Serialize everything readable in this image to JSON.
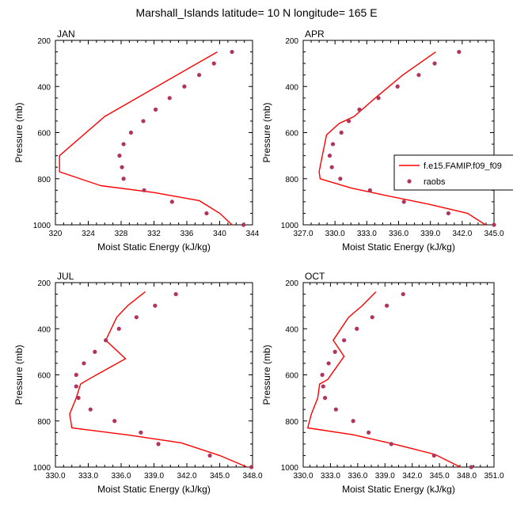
{
  "title": "Marshall_Islands  latitude= 10 N longitude= 165 E",
  "colors": {
    "model": "#ff0000",
    "obs": "#b0345c",
    "axis": "#000000"
  },
  "legend": {
    "entries": [
      "f.e15.FAMIP.f09_f09",
      "raobs"
    ],
    "location": "APR panel, right side"
  },
  "chart_data": [
    {
      "type": "line",
      "panel": "JAN",
      "xlabel": "Moist Static Energy (kJ/kg)",
      "ylabel": "Pressure (mb)",
      "xlim": [
        320,
        344
      ],
      "xticks": [
        320,
        324,
        328,
        332,
        336,
        340,
        344
      ],
      "xtick_labels": [
        "320",
        "324",
        "328",
        "332",
        "336",
        "340",
        "344"
      ],
      "ylim": [
        200,
        1000
      ],
      "yticks": [
        200,
        400,
        600,
        800,
        1000
      ],
      "ytick_labels": [
        "200",
        "400",
        "600",
        "800",
        "1000"
      ],
      "series": [
        {
          "name": "f.e15.FAMIP.f09_f09",
          "style": "line",
          "x": [
            339.7,
            326.0,
            320.5,
            320.5,
            325.5,
            332.0,
            337.5,
            340.0,
            341.5
          ],
          "y": [
            250,
            530,
            700,
            770,
            830,
            860,
            895,
            950,
            1000
          ]
        },
        {
          "name": "raobs",
          "style": "marker",
          "x": [
            341.5,
            339.3,
            337.5,
            335.7,
            333.9,
            332.2,
            330.7,
            329.2,
            328.3,
            327.8,
            328.1,
            328.3,
            330.8,
            334.2,
            338.4,
            342.9
          ],
          "y": [
            250,
            300,
            350,
            400,
            450,
            500,
            550,
            600,
            650,
            700,
            750,
            800,
            850,
            900,
            950,
            1000
          ]
        }
      ]
    },
    {
      "type": "line",
      "panel": "APR",
      "xlabel": "Moist Static Energy (kJ/kg)",
      "ylabel": "Pressure (mb)",
      "xlim": [
        327,
        345
      ],
      "xticks": [
        327,
        330,
        333,
        336,
        339,
        342,
        345
      ],
      "xtick_labels": [
        "327.0",
        "330.0",
        "333.0",
        "336.0",
        "339.0",
        "342.0",
        "345.0"
      ],
      "ylim": [
        200,
        1000
      ],
      "yticks": [
        200,
        400,
        600,
        800,
        1000
      ],
      "ytick_labels": [
        "200",
        "400",
        "600",
        "800",
        "1000"
      ],
      "series": [
        {
          "name": "f.e15.FAMIP.f09_f09",
          "style": "line",
          "x": [
            339.5,
            336.4,
            333.8,
            331.8,
            330.4,
            329.2,
            328.8,
            328.5,
            328.6,
            331.5,
            334.5,
            338.8,
            342.5,
            344.2
          ],
          "y": [
            250,
            350,
            450,
            530,
            560,
            610,
            700,
            770,
            800,
            840,
            870,
            910,
            950,
            1000
          ]
        },
        {
          "name": "raobs",
          "style": "marker",
          "x": [
            341.7,
            339.4,
            337.9,
            335.9,
            334.1,
            332.3,
            331.3,
            330.6,
            329.8,
            329.5,
            329.7,
            330.5,
            333.3,
            336.5,
            340.7,
            345.0
          ],
          "y": [
            250,
            300,
            350,
            400,
            450,
            500,
            550,
            600,
            650,
            700,
            750,
            800,
            850,
            900,
            950,
            1000
          ]
        }
      ]
    },
    {
      "type": "line",
      "panel": "JUL",
      "xlabel": "Moist Static Energy (kJ/kg)",
      "ylabel": "Pressure (mb)",
      "xlim": [
        330,
        348
      ],
      "xticks": [
        330,
        333,
        336,
        339,
        342,
        345,
        348
      ],
      "xtick_labels": [
        "330.0",
        "333.0",
        "336.0",
        "339.0",
        "342.0",
        "345.0",
        "348.0"
      ],
      "ylim": [
        200,
        1000
      ],
      "yticks": [
        200,
        400,
        600,
        800,
        1000
      ],
      "ytick_labels": [
        "200",
        "400",
        "600",
        "800",
        "1000"
      ],
      "series": [
        {
          "name": "f.e15.FAMIP.f09_f09",
          "style": "line",
          "x": [
            338.2,
            336.6,
            335.6,
            334.6,
            336.4,
            333.0,
            332.3,
            331.9,
            331.3,
            331.5,
            336.5,
            341.5,
            345.0,
            347.5
          ],
          "y": [
            240,
            300,
            350,
            450,
            530,
            620,
            640,
            700,
            770,
            830,
            860,
            895,
            950,
            1000
          ]
        },
        {
          "name": "raobs",
          "style": "marker",
          "x": [
            341.0,
            339.1,
            337.4,
            335.8,
            334.6,
            333.6,
            332.6,
            331.9,
            331.9,
            332.1,
            333.2,
            335.4,
            337.8,
            339.4,
            344.1,
            347.9
          ],
          "y": [
            250,
            300,
            350,
            400,
            450,
            500,
            550,
            600,
            650,
            700,
            750,
            800,
            850,
            900,
            950,
            1000
          ]
        }
      ]
    },
    {
      "type": "line",
      "panel": "OCT",
      "xlabel": "Moist Static Energy (kJ/kg)",
      "ylabel": "Pressure (mb)",
      "xlim": [
        330,
        351
      ],
      "xticks": [
        330,
        333,
        336,
        339,
        342,
        345,
        348,
        351
      ],
      "xtick_labels": [
        "330.0",
        "333.0",
        "336.0",
        "339.0",
        "342.0",
        "345.0",
        "348.0",
        "351.0"
      ],
      "ylim": [
        200,
        1000
      ],
      "yticks": [
        200,
        400,
        600,
        800,
        1000
      ],
      "ytick_labels": [
        "200",
        "400",
        "600",
        "800",
        "1000"
      ],
      "series": [
        {
          "name": "f.e15.FAMIP.f09_f09",
          "style": "line",
          "x": [
            338.0,
            336.5,
            335.0,
            333.3,
            334.5,
            332.7,
            331.8,
            331.6,
            330.9,
            330.5,
            335.5,
            340.0,
            344.5,
            347.3
          ],
          "y": [
            240,
            300,
            350,
            450,
            520,
            620,
            640,
            700,
            770,
            830,
            860,
            900,
            945,
            1000
          ]
        },
        {
          "name": "raobs",
          "style": "marker",
          "x": [
            341.0,
            339.2,
            337.6,
            335.9,
            334.5,
            333.5,
            332.8,
            332.1,
            332.2,
            332.4,
            333.6,
            335.5,
            337.2,
            339.7,
            344.4,
            348.5
          ],
          "y": [
            250,
            300,
            350,
            400,
            450,
            500,
            550,
            600,
            650,
            700,
            750,
            800,
            850,
            900,
            950,
            1000
          ]
        }
      ]
    }
  ]
}
